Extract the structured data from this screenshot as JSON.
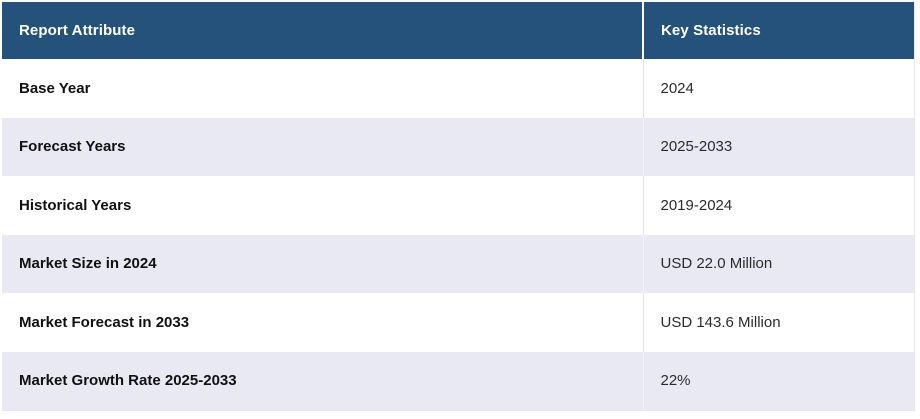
{
  "table": {
    "columns": [
      "Report Attribute",
      "Key Statistics"
    ],
    "rows": [
      {
        "attribute": "Base Year",
        "value": "2024"
      },
      {
        "attribute": "Forecast Years",
        "value": "2025-2033"
      },
      {
        "attribute": "Historical Years",
        "value": "2019-2024"
      },
      {
        "attribute": "Market Size in 2024",
        "value": "USD 22.0 Million"
      },
      {
        "attribute": "Market Forecast in 2033",
        "value": "USD 143.6 Million"
      },
      {
        "attribute": "Market Growth Rate 2025-2033",
        "value": "22%"
      }
    ],
    "colors": {
      "header_bg": "#24527B",
      "header_text": "#FFFFFF",
      "row_bg": "#FFFFFF",
      "row_alt_bg": "#E9E9F3",
      "body_text": "#2B2B2B"
    }
  }
}
